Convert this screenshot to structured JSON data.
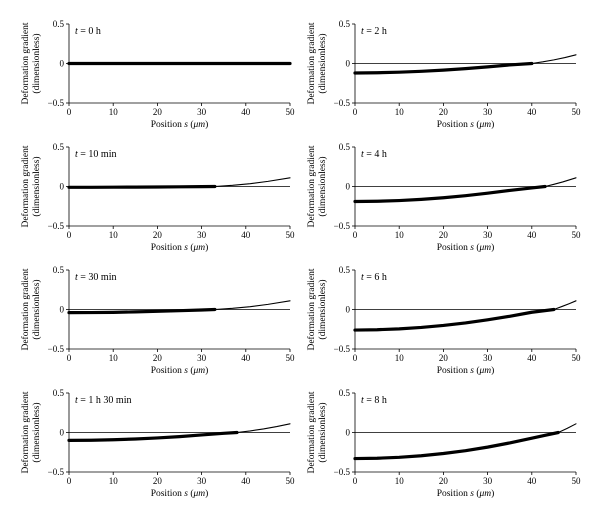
{
  "figure": {
    "background": "#ffffff",
    "line_color": "#000000"
  },
  "chart_data": [
    {
      "type": "line",
      "title": "t = 0 h",
      "xlabel": "Position s (μm)",
      "ylabel": "Deformation gradient (dimensionless)",
      "xlim": [
        0,
        50
      ],
      "ylim": [
        -0.5,
        0.5
      ],
      "xticks": [
        0,
        10,
        20,
        30,
        40,
        50
      ],
      "yticks": [
        -0.5,
        0,
        0.5
      ],
      "ytick_labels": [
        "−0.5",
        "0",
        "0.5"
      ],
      "grid": false,
      "front": 50,
      "thick_x": [
        0,
        5,
        10,
        15,
        20,
        25,
        30,
        35,
        40,
        45,
        50
      ],
      "thick_y": [
        0,
        0,
        0,
        0,
        0,
        0,
        0,
        0,
        0,
        0,
        0
      ],
      "thin_x": [],
      "thin_y": []
    },
    {
      "type": "line",
      "title": "t = 2 h",
      "xlabel": "Position s (μm)",
      "ylabel": "Deformation gradient (dimensionless)",
      "xlim": [
        0,
        50
      ],
      "ylim": [
        -0.5,
        0.5
      ],
      "xticks": [
        0,
        10,
        20,
        30,
        40,
        50
      ],
      "yticks": [
        -0.5,
        0,
        0.5
      ],
      "ytick_labels": [
        "−0.5",
        "0",
        "0.5"
      ],
      "grid": false,
      "front": 40,
      "thick_x": [
        0,
        5,
        10,
        15,
        20,
        25,
        30,
        35,
        40
      ],
      "thick_y": [
        -0.12,
        -0.117,
        -0.11,
        -0.099,
        -0.084,
        -0.065,
        -0.043,
        -0.018,
        0.0
      ],
      "thin_x": [
        40,
        42.5,
        45,
        47.5,
        50
      ],
      "thin_y": [
        0.0,
        0.021,
        0.046,
        0.075,
        0.11
      ]
    },
    {
      "type": "line",
      "title": "t = 10 min",
      "xlabel": "Position s (μm)",
      "ylabel": "Deformation gradient (dimensionless)",
      "xlim": [
        0,
        50
      ],
      "ylim": [
        -0.5,
        0.5
      ],
      "xticks": [
        0,
        10,
        20,
        30,
        40,
        50
      ],
      "yticks": [
        -0.5,
        0,
        0.5
      ],
      "ytick_labels": [
        "−0.5",
        "0",
        "0.5"
      ],
      "grid": false,
      "front": 33,
      "thick_x": [
        0,
        5,
        10,
        15,
        20,
        25,
        30,
        33
      ],
      "thick_y": [
        -0.01,
        -0.01,
        -0.009,
        -0.008,
        -0.006,
        -0.004,
        -0.002,
        0.0
      ],
      "thin_x": [
        33,
        37,
        41,
        45,
        50
      ],
      "thin_y": [
        0.0,
        0.015,
        0.036,
        0.065,
        0.11
      ]
    },
    {
      "type": "line",
      "title": "t = 4 h",
      "xlabel": "Position s (μm)",
      "ylabel": "Deformation gradient (dimensionless)",
      "xlim": [
        0,
        50
      ],
      "ylim": [
        -0.5,
        0.5
      ],
      "xticks": [
        0,
        10,
        20,
        30,
        40,
        50
      ],
      "yticks": [
        -0.5,
        0,
        0.5
      ],
      "ytick_labels": [
        "−0.5",
        "0",
        "0.5"
      ],
      "grid": false,
      "front": 43,
      "thick_x": [
        0,
        5,
        10,
        15,
        20,
        25,
        30,
        35,
        40,
        43
      ],
      "thick_y": [
        -0.19,
        -0.187,
        -0.178,
        -0.163,
        -0.142,
        -0.116,
        -0.085,
        -0.05,
        -0.018,
        0.0
      ],
      "thin_x": [
        43,
        45,
        47,
        50
      ],
      "thin_y": [
        0.0,
        0.028,
        0.058,
        0.11
      ]
    },
    {
      "type": "line",
      "title": "t = 30 min",
      "xlabel": "Position s (μm)",
      "ylabel": "Deformation gradient (dimensionless)",
      "xlim": [
        0,
        50
      ],
      "ylim": [
        -0.5,
        0.5
      ],
      "xticks": [
        0,
        10,
        20,
        30,
        40,
        50
      ],
      "yticks": [
        -0.5,
        0,
        0.5
      ],
      "ytick_labels": [
        "−0.5",
        "0",
        "0.5"
      ],
      "grid": false,
      "front": 33,
      "thick_x": [
        0,
        5,
        10,
        15,
        20,
        25,
        30,
        33
      ],
      "thick_y": [
        -0.04,
        -0.039,
        -0.036,
        -0.03,
        -0.023,
        -0.015,
        -0.006,
        0.0
      ],
      "thin_x": [
        33,
        37,
        41,
        45,
        50
      ],
      "thin_y": [
        0.0,
        0.015,
        0.036,
        0.065,
        0.11
      ]
    },
    {
      "type": "line",
      "title": "t = 6 h",
      "xlabel": "Position s (μm)",
      "ylabel": "Deformation gradient (dimensionless)",
      "xlim": [
        0,
        50
      ],
      "ylim": [
        -0.5,
        0.5
      ],
      "xticks": [
        0,
        10,
        20,
        30,
        40,
        50
      ],
      "yticks": [
        -0.5,
        0,
        0.5
      ],
      "ytick_labels": [
        "−0.5",
        "0",
        "0.5"
      ],
      "grid": false,
      "front": 45,
      "thick_x": [
        0,
        5,
        10,
        15,
        20,
        25,
        30,
        35,
        40,
        45
      ],
      "thick_y": [
        -0.26,
        -0.256,
        -0.245,
        -0.227,
        -0.202,
        -0.17,
        -0.131,
        -0.086,
        -0.035,
        0.0
      ],
      "thin_x": [
        45,
        47,
        48.5,
        50
      ],
      "thin_y": [
        0.0,
        0.042,
        0.074,
        0.11
      ]
    },
    {
      "type": "line",
      "title": "t = 1 h 30 min",
      "xlabel": "Position s (μm)",
      "ylabel": "Deformation gradient (dimensionless)",
      "xlim": [
        0,
        50
      ],
      "ylim": [
        -0.5,
        0.5
      ],
      "xticks": [
        0,
        10,
        20,
        30,
        40,
        50
      ],
      "yticks": [
        -0.5,
        0,
        0.5
      ],
      "ytick_labels": [
        "−0.5",
        "0",
        "0.5"
      ],
      "grid": false,
      "front": 38,
      "thick_x": [
        0,
        5,
        10,
        15,
        20,
        25,
        30,
        35,
        38
      ],
      "thick_y": [
        -0.1,
        -0.098,
        -0.092,
        -0.082,
        -0.069,
        -0.052,
        -0.031,
        -0.01,
        0.0
      ],
      "thin_x": [
        38,
        41,
        44,
        47,
        50
      ],
      "thin_y": [
        0.0,
        0.02,
        0.045,
        0.075,
        0.11
      ]
    },
    {
      "type": "line",
      "title": "t = 8 h",
      "xlabel": "Position s (μm)",
      "ylabel": "Deformation gradient (dimensionless)",
      "xlim": [
        0,
        50
      ],
      "ylim": [
        -0.5,
        0.5
      ],
      "xticks": [
        0,
        10,
        20,
        30,
        40,
        50
      ],
      "yticks": [
        -0.5,
        0,
        0.5
      ],
      "ytick_labels": [
        "−0.5",
        "0",
        "0.5"
      ],
      "grid": false,
      "front": 46,
      "thick_x": [
        0,
        5,
        10,
        15,
        20,
        25,
        30,
        35,
        40,
        43,
        46
      ],
      "thick_y": [
        -0.33,
        -0.326,
        -0.314,
        -0.294,
        -0.266,
        -0.23,
        -0.185,
        -0.132,
        -0.072,
        -0.035,
        0.0
      ],
      "thin_x": [
        46,
        48,
        50
      ],
      "thin_y": [
        0.0,
        0.052,
        0.11
      ]
    }
  ]
}
